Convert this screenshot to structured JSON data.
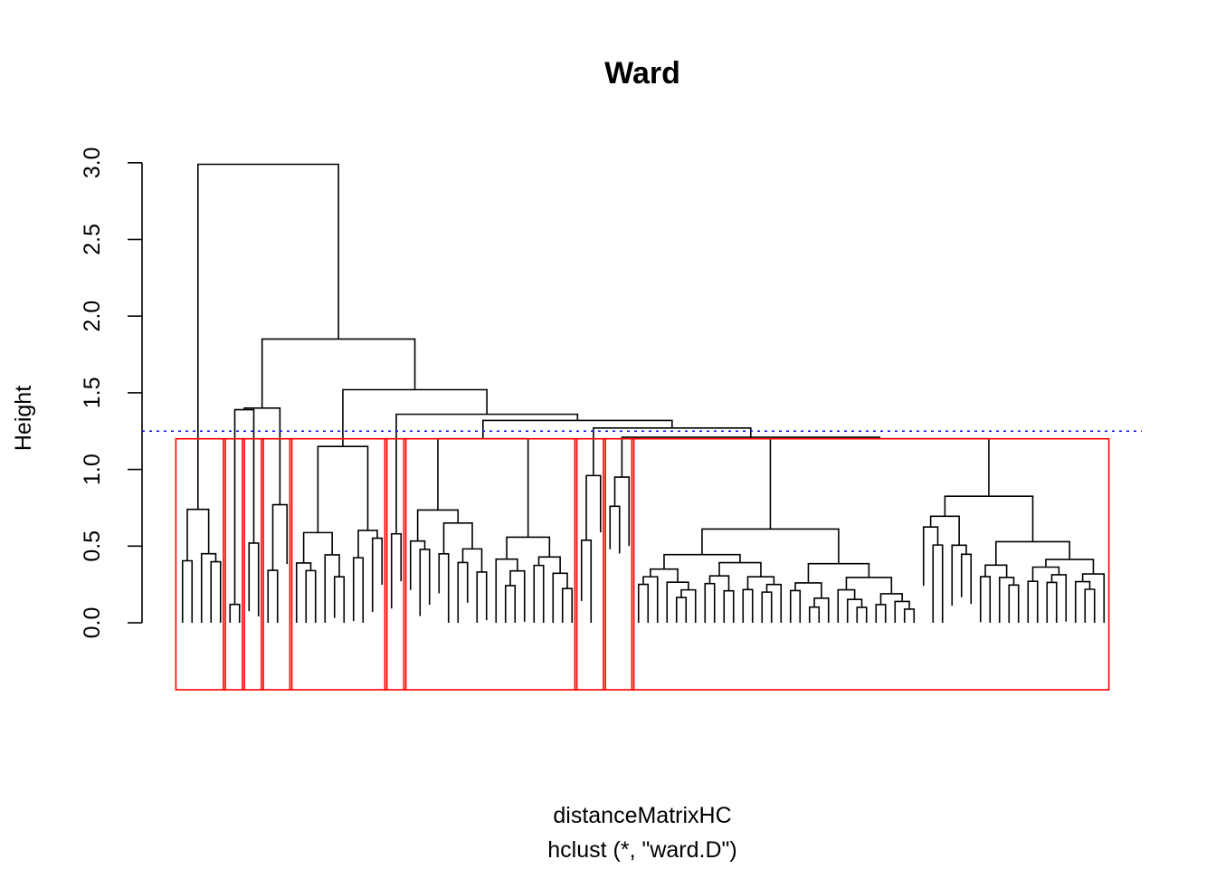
{
  "chart_data": {
    "type": "dendrogram",
    "title": "Ward",
    "xlabel": "distanceMatrixHC",
    "sublabel": "hclust (*, \"ward.D\")",
    "ylabel": "Height",
    "ylim": [
      0,
      3.0
    ],
    "yticks": [
      0.0,
      0.5,
      1.0,
      1.5,
      2.0,
      2.5,
      3.0
    ],
    "ytick_labels": [
      "0.0",
      "0.5",
      "1.0",
      "1.5",
      "2.0",
      "2.5",
      "3.0"
    ],
    "grid": false,
    "cut_height": 1.25,
    "n_clusters": 10,
    "cut_line_color": "#0000ff",
    "cluster_box_color": "#ff0000",
    "tree_color": "#000000",
    "clusters": [
      {
        "id": 1,
        "n_leaves": 5
      },
      {
        "id": 2,
        "n_leaves": 2
      },
      {
        "id": 3,
        "n_leaves": 2
      },
      {
        "id": 4,
        "n_leaves": 3
      },
      {
        "id": 5,
        "n_leaves": 10
      },
      {
        "id": 6,
        "n_leaves": 2
      },
      {
        "id": 7,
        "n_leaves": 18
      },
      {
        "id": 8,
        "n_leaves": 3
      },
      {
        "id": 9,
        "n_leaves": 3
      },
      {
        "id": 10,
        "n_leaves": 50
      }
    ],
    "top_merges": [
      {
        "height": 2.99,
        "joins": "cluster 1 with rest"
      },
      {
        "height": 1.85,
        "joins": "clusters 2-4 with 5-10"
      },
      {
        "height": 1.54,
        "joins": "clusters 2-4 with 5-10 subtree"
      },
      {
        "height": 1.52,
        "joins": "cluster 5 with clusters 6-10"
      },
      {
        "height": 1.39,
        "joins": "cluster 2 with cluster 3"
      },
      {
        "height": 1.36,
        "joins": "cluster 6 with clusters 7-10"
      },
      {
        "height": 1.32,
        "joins": "cluster 7 with clusters 8-10"
      },
      {
        "height": 1.27,
        "joins": "cluster 8 with clusters 9-10"
      }
    ]
  }
}
